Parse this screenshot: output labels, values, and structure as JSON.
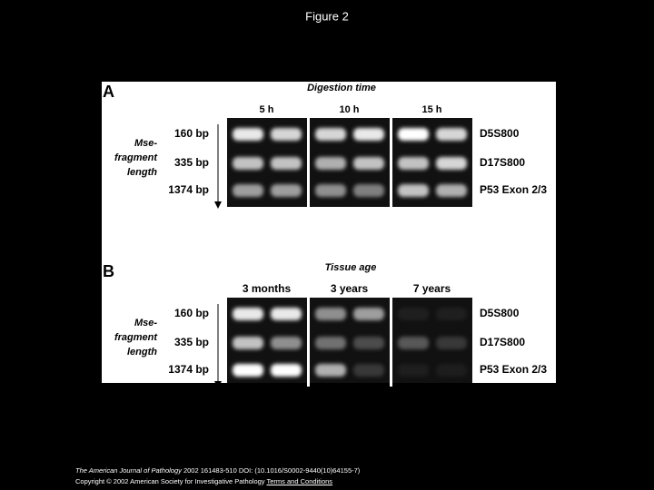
{
  "header": {
    "title": "Figure 2"
  },
  "figure": {
    "panels": [
      {
        "letter": "A",
        "heading": "Digestion time",
        "columns": [
          "5 h",
          "10 h",
          "15 h"
        ],
        "axis_label": [
          "Mse-",
          "fragment",
          "length"
        ],
        "fragments": [
          "160 bp",
          "335 bp",
          "1374 bp"
        ],
        "markers": [
          "D5S800",
          "D17S800",
          "P53 Exon 2/3"
        ]
      },
      {
        "letter": "B",
        "heading": "Tissue age",
        "columns": [
          "3 months",
          "3 years",
          "7 years"
        ],
        "axis_label": [
          "Mse-",
          "fragment",
          "length"
        ],
        "fragments": [
          "160 bp",
          "335 bp",
          "1374 bp"
        ],
        "markers": [
          "D5S800",
          "D17S800",
          "P53 Exon 2/3"
        ]
      }
    ]
  },
  "footer": {
    "journal": "The American Journal of Pathology",
    "citation": "2002 161483-510 DOI: (10.1016/S0002-9440(10)64155-7)",
    "copyright": "Copyright © 2002 American Society for Investigative Pathology",
    "link": "Terms and Conditions"
  }
}
